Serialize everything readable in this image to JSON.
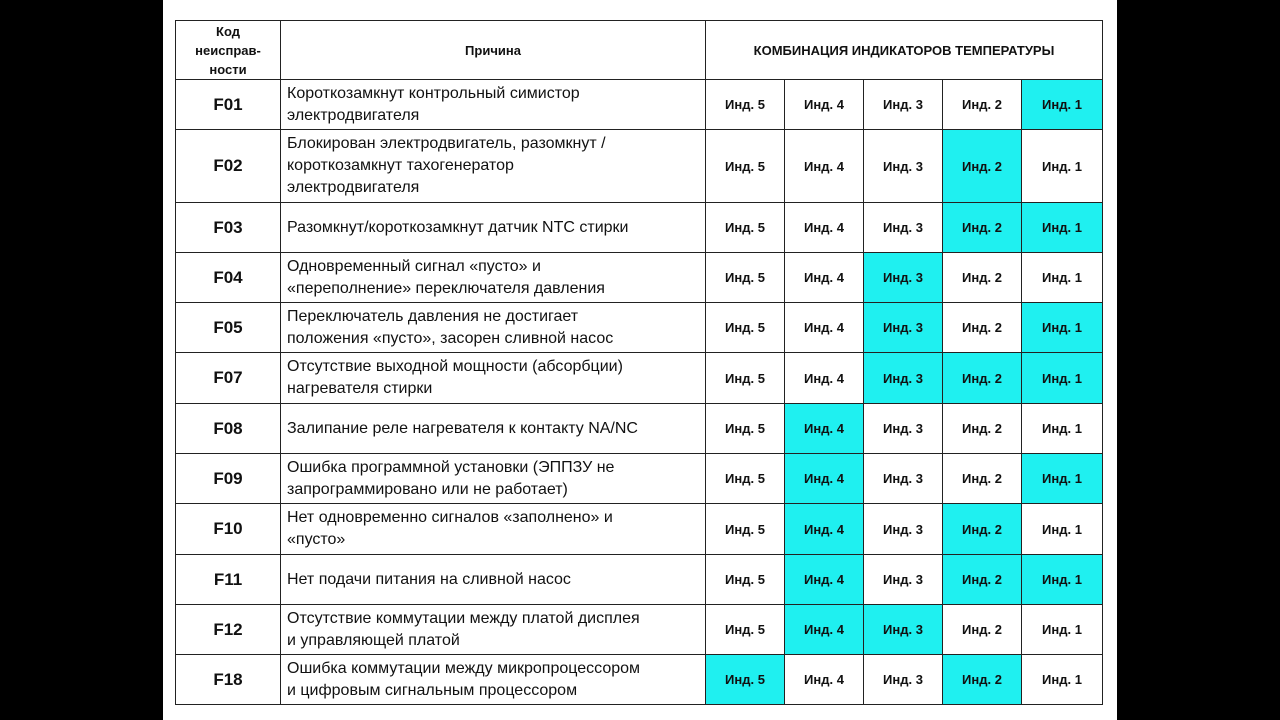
{
  "header": {
    "code": "Код\nнеисправ-\nности",
    "reason": "Причина",
    "indicators": "КОМБИНАЦИЯ ИНДИКАТОРОВ ТЕМПЕРАТУРЫ"
  },
  "indicator_labels": [
    "Инд. 5",
    "Инд. 4",
    "Инд. 3",
    "Инд. 2",
    "Инд. 1"
  ],
  "highlight_color": "#1ff0f0",
  "rows": [
    {
      "code": "F01",
      "reason": "Короткозамкнут контрольный симистор\nэлектродвигателя",
      "lit": [
        0,
        0,
        0,
        0,
        1
      ]
    },
    {
      "code": "F02",
      "reason": "Блокирован электродвигатель, разомкнут /\nкороткозамкнут тахогенератор\nэлектродвигателя",
      "lit": [
        0,
        0,
        0,
        1,
        0
      ]
    },
    {
      "code": "F03",
      "reason": "Разомкнут/короткозамкнут датчик NTC стирки",
      "lit": [
        0,
        0,
        0,
        1,
        1
      ]
    },
    {
      "code": "F04",
      "reason": "Одновременный сигнал «пусто» и\n«переполнение» переключателя давления",
      "lit": [
        0,
        0,
        1,
        0,
        0
      ]
    },
    {
      "code": "F05",
      "reason": "Переключатель давления не достигает\nположения «пусто», засорен сливной насос",
      "lit": [
        0,
        0,
        1,
        0,
        1
      ]
    },
    {
      "code": "F07",
      "reason": "Отсутствие выходной мощности (абсорбции)\nнагревателя стирки",
      "lit": [
        0,
        0,
        1,
        1,
        1
      ]
    },
    {
      "code": "F08",
      "reason": "Залипание реле нагревателя к контакту NA/NC",
      "lit": [
        0,
        1,
        0,
        0,
        0
      ]
    },
    {
      "code": "F09",
      "reason": "Ошибка программной установки (ЭППЗУ не\nзапрограммировано или не работает)",
      "lit": [
        0,
        1,
        0,
        0,
        1
      ]
    },
    {
      "code": "F10",
      "reason": "Нет одновременно сигналов «заполнено» и\n«пусто»",
      "lit": [
        0,
        1,
        0,
        1,
        0
      ]
    },
    {
      "code": "F11",
      "reason": "Нет подачи питания на сливной насос",
      "lit": [
        0,
        1,
        0,
        1,
        1
      ]
    },
    {
      "code": "F12",
      "reason": "Отсутствие коммутации между платой дисплея\nи управляющей платой",
      "lit": [
        0,
        1,
        1,
        0,
        0
      ]
    },
    {
      "code": "F18",
      "reason": "Ошибка коммутации между микропроцессором\nи цифровым сигнальным процессором",
      "lit": [
        1,
        0,
        0,
        1,
        0
      ]
    }
  ]
}
